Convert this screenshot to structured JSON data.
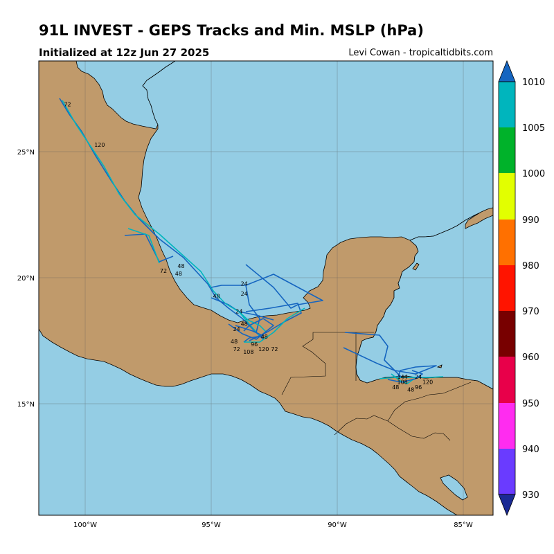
{
  "header": {
    "title": "91L INVEST - GEPS Tracks and Min. MSLP (hPa)",
    "subtitle": "Initialized at 12z Jun 27 2025",
    "credit": "Levi Cowan - tropicaltidbits.com"
  },
  "map": {
    "lon_range": [
      -102,
      -84
    ],
    "lat_range": [
      11,
      29
    ],
    "lon_ticks": [
      {
        "lon": -100,
        "label": "100°W"
      },
      {
        "lon": -95,
        "label": "95°W"
      },
      {
        "lon": -90,
        "label": "90°W"
      },
      {
        "lon": -85,
        "label": "85°W"
      }
    ],
    "lat_ticks": [
      {
        "lat": 25,
        "label": "25°N"
      },
      {
        "lat": 20,
        "label": "20°N"
      },
      {
        "lat": 15,
        "label": "15°N"
      }
    ],
    "colors": {
      "ocean": "#94cde4",
      "land": "#c09a6b",
      "coast": "#000000",
      "grid": "#555555"
    }
  },
  "colorbar": {
    "levels": [
      "1010",
      "1005",
      "1000",
      "990",
      "980",
      "970",
      "960",
      "950",
      "940",
      "930"
    ],
    "colors": [
      "#1565c0",
      "#00b5bd",
      "#00b22a",
      "#e2ff00",
      "#ff7000",
      "#ff1400",
      "#780000",
      "#e8004a",
      "#ff2cf0",
      "#6a3bff",
      "#1a2a94"
    ]
  },
  "track_labels": [
    {
      "text": "72",
      "lon": -101,
      "lat": 27.2
    },
    {
      "text": "120",
      "lon": -99.8,
      "lat": 25.6
    },
    {
      "text": "48",
      "lon": -96.5,
      "lat": 20.8
    },
    {
      "text": "48",
      "lon": -96.6,
      "lat": 20.5
    },
    {
      "text": "72",
      "lon": -97.2,
      "lat": 20.6
    },
    {
      "text": "24",
      "lon": -94.0,
      "lat": 20.1
    },
    {
      "text": "48",
      "lon": -95.1,
      "lat": 19.6
    },
    {
      "text": "24",
      "lon": -94.0,
      "lat": 19.7
    },
    {
      "text": "24",
      "lon": -94.2,
      "lat": 19.0
    },
    {
      "text": "48",
      "lon": -94.0,
      "lat": 18.5
    },
    {
      "text": "24",
      "lon": -94.3,
      "lat": 18.3
    },
    {
      "text": "48",
      "lon": -93.2,
      "lat": 18.0
    },
    {
      "text": "48",
      "lon": -94.4,
      "lat": 17.8
    },
    {
      "text": "72",
      "lon": -94.3,
      "lat": 17.5
    },
    {
      "text": "96",
      "lon": -93.6,
      "lat": 17.7
    },
    {
      "text": "120",
      "lon": -93.3,
      "lat": 17.5
    },
    {
      "text": "72",
      "lon": -92.8,
      "lat": 17.5
    },
    {
      "text": "108",
      "lon": -93.9,
      "lat": 17.4
    },
    {
      "text": "144",
      "lon": -87.8,
      "lat": 16.4
    },
    {
      "text": "24",
      "lon": -87.1,
      "lat": 16.4
    },
    {
      "text": "108",
      "lon": -87.8,
      "lat": 16.2
    },
    {
      "text": "120",
      "lon": -86.8,
      "lat": 16.2
    },
    {
      "text": "48",
      "lon": -88.0,
      "lat": 16.0
    },
    {
      "text": "96",
      "lon": -87.1,
      "lat": 16.0
    },
    {
      "text": "48",
      "lon": -87.4,
      "lat": 15.9
    }
  ]
}
